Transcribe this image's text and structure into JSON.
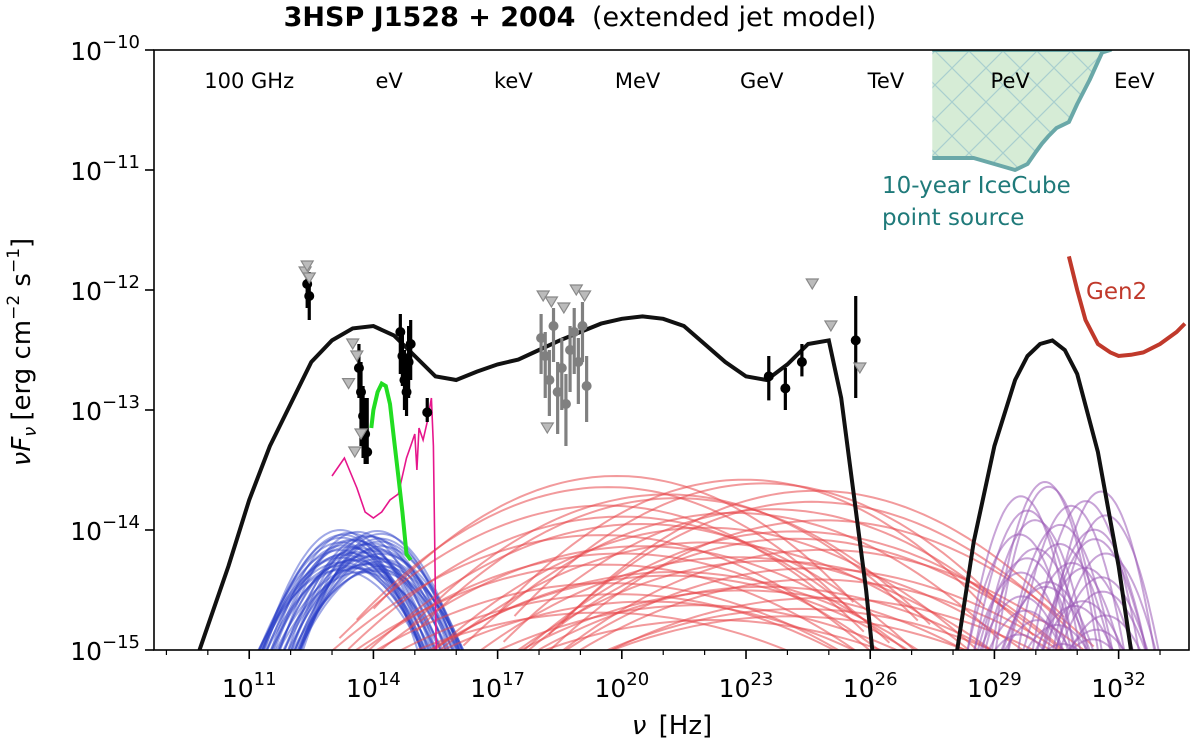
{
  "chart_data": {
    "type": "line",
    "title": {
      "source_bold": "3HSP J1528 + 2004",
      "model": "(extended jet model)"
    },
    "xlabel": {
      "symbol": "ν",
      "unit": "[Hz]"
    },
    "ylabel": {
      "main": "νF",
      "sub": "ν",
      "unit": "[erg cm",
      "exp1": "−2",
      "mid": " s",
      "exp2": "−1",
      "close": "]"
    },
    "x_scale": "log",
    "y_scale": "log",
    "xlim_log10": [
      8.7,
      33.7
    ],
    "ylim_log10": [
      -15,
      -10
    ],
    "x_ticks": [
      {
        "base": "10",
        "exp": "11",
        "log": 11
      },
      {
        "base": "10",
        "exp": "14",
        "log": 14
      },
      {
        "base": "10",
        "exp": "17",
        "log": 17
      },
      {
        "base": "10",
        "exp": "20",
        "log": 20
      },
      {
        "base": "10",
        "exp": "23",
        "log": 23
      },
      {
        "base": "10",
        "exp": "26",
        "log": 26
      },
      {
        "base": "10",
        "exp": "29",
        "log": 29
      },
      {
        "base": "10",
        "exp": "32",
        "log": 32
      }
    ],
    "y_ticks": [
      {
        "base": "10",
        "exp": "−10",
        "log": -10
      },
      {
        "base": "10",
        "exp": "−11",
        "log": -11
      },
      {
        "base": "10",
        "exp": "−12",
        "log": -12
      },
      {
        "base": "10",
        "exp": "−13",
        "log": -13
      },
      {
        "base": "10",
        "exp": "−14",
        "log": -14
      },
      {
        "base": "10",
        "exp": "−15",
        "log": -15
      }
    ],
    "energy_labels": [
      {
        "text": "100 GHz",
        "log": 11.0
      },
      {
        "text": "eV",
        "log": 14.38
      },
      {
        "text": "keV",
        "log": 17.38
      },
      {
        "text": "MeV",
        "log": 20.38
      },
      {
        "text": "GeV",
        "log": 23.38
      },
      {
        "text": "TeV",
        "log": 26.38
      },
      {
        "text": "PeV",
        "log": 29.38
      },
      {
        "text": "EeV",
        "log": 32.38
      }
    ],
    "annotations": {
      "icecube_line1": "10-year IceCube",
      "icecube_line2": "point source",
      "gen2": "Gen2"
    },
    "colors": {
      "total_model": "#111111",
      "synchrotron_components": "#2b3fc7",
      "ic_components": "#e8474a",
      "neutrino_components": "#9b59b6",
      "data_black": "#000000",
      "data_gray": "#808080",
      "uv_optical_green": "#22dd22",
      "host_magenta": "#e6168c",
      "icecube_fill": "#d6ecd6",
      "icecube_edge": "#6aa8a8",
      "gen2": "#c0392b",
      "annotation_teal": "#1f7a7a",
      "annotation_red": "#c0392b"
    },
    "series": [
      {
        "role": "total photon SED",
        "x_log": [
          9.8,
          10.5,
          11.0,
          11.5,
          12.0,
          12.5,
          13.0,
          13.5,
          14.0,
          14.5,
          15.0,
          15.5,
          16.0,
          16.5,
          17.0,
          17.5,
          18.0,
          18.5,
          19.0,
          19.5,
          20.0,
          20.5,
          21.0,
          21.5,
          22.0,
          22.5,
          23.0,
          23.5,
          24.0,
          24.5,
          25.0,
          25.3,
          25.6,
          25.9,
          26.05
        ],
        "y_log": [
          -15.0,
          -14.3,
          -13.75,
          -13.3,
          -12.95,
          -12.6,
          -12.42,
          -12.32,
          -12.3,
          -12.38,
          -12.55,
          -12.72,
          -12.75,
          -12.68,
          -12.62,
          -12.58,
          -12.5,
          -12.42,
          -12.35,
          -12.28,
          -12.24,
          -12.22,
          -12.24,
          -12.3,
          -12.45,
          -12.6,
          -12.72,
          -12.75,
          -12.62,
          -12.45,
          -12.42,
          -12.9,
          -13.7,
          -14.5,
          -15.0
        ]
      },
      {
        "role": "total neutrino spectrum",
        "x_log": [
          28.1,
          28.5,
          29.0,
          29.5,
          29.8,
          30.1,
          30.4,
          30.7,
          31.0,
          31.5,
          32.0,
          32.3
        ],
        "y_log": [
          -15.0,
          -14.1,
          -13.3,
          -12.75,
          -12.55,
          -12.45,
          -12.42,
          -12.5,
          -12.7,
          -13.35,
          -14.3,
          -15.0
        ]
      },
      {
        "role": "uv-optical data",
        "x_log": [
          13.95,
          14.0,
          14.1,
          14.2,
          14.3,
          14.4,
          14.5,
          14.6,
          14.7,
          14.8,
          14.9
        ],
        "y_log": [
          -13.15,
          -13.0,
          -12.85,
          -12.78,
          -12.8,
          -12.95,
          -13.25,
          -13.55,
          -13.85,
          -14.2,
          -14.25
        ]
      },
      {
        "role": "host galaxy template",
        "x_log": [
          13.0,
          13.3,
          13.6,
          13.8,
          14.0,
          14.2,
          14.4,
          14.6,
          14.7,
          14.8,
          14.9,
          15.0,
          15.05,
          15.1,
          15.2,
          15.3,
          15.4,
          15.45,
          15.5,
          15.52
        ],
        "y_log": [
          -13.55,
          -13.4,
          -13.65,
          -13.85,
          -13.9,
          -13.85,
          -13.75,
          -13.7,
          -13.55,
          -13.4,
          -13.3,
          -13.2,
          -13.5,
          -13.15,
          -13.25,
          -13.1,
          -12.9,
          -13.3,
          -14.6,
          -15.0
        ]
      },
      {
        "role": "Gen2 sensitivity",
        "x_log": [
          30.8,
          31.0,
          31.2,
          31.5,
          31.8,
          32.0,
          32.3,
          32.6,
          33.0,
          33.4,
          33.6
        ],
        "y_log": [
          -11.72,
          -12.0,
          -12.25,
          -12.45,
          -12.52,
          -12.55,
          -12.54,
          -12.52,
          -12.45,
          -12.35,
          -12.28
        ]
      },
      {
        "role": "IceCube sensitivity band",
        "x_log": [
          27.5,
          28.5,
          29.0,
          29.5,
          29.8,
          30.0,
          30.15,
          30.3,
          30.5,
          30.8,
          31.0,
          31.3,
          31.6,
          31.8,
          31.5,
          31.1,
          30.8,
          30.5,
          30.2,
          30.0,
          29.8,
          29.5,
          29.0,
          28.6,
          28.3,
          28.0,
          27.7,
          27.5
        ],
        "y_log": [
          -10.9,
          -10.9,
          -10.95,
          -11.0,
          -10.95,
          -10.85,
          -10.78,
          -10.72,
          -10.65,
          -10.6,
          -10.45,
          -10.25,
          -10.02,
          -10.0,
          -10.0,
          -10.0,
          -10.0,
          -10.0,
          -10.0,
          -10.0,
          -10.0,
          -10.0,
          -10.0,
          -10.0,
          -10.0,
          -10.0,
          -10.0,
          -10.0
        ]
      }
    ],
    "data_points_black": [
      {
        "x": 12.4,
        "y": -11.95,
        "lo": -12.15,
        "hi": -11.8
      },
      {
        "x": 12.45,
        "y": -12.05,
        "lo": -12.25,
        "hi": -11.85
      },
      {
        "x": 13.65,
        "y": -12.65,
        "lo": -12.9,
        "hi": -12.45
      },
      {
        "x": 13.7,
        "y": -12.85,
        "lo": -13.3,
        "hi": -12.6
      },
      {
        "x": 13.75,
        "y": -13.05,
        "lo": -13.4,
        "hi": -12.8
      },
      {
        "x": 13.8,
        "y": -13.2,
        "lo": -13.45,
        "hi": -12.9
      },
      {
        "x": 13.85,
        "y": -13.35,
        "lo": -13.45,
        "hi": -12.9
      },
      {
        "x": 14.65,
        "y": -12.35,
        "lo": -12.7,
        "hi": -12.2
      },
      {
        "x": 14.7,
        "y": -12.55,
        "lo": -12.8,
        "hi": -12.35
      },
      {
        "x": 14.75,
        "y": -12.75,
        "lo": -13.0,
        "hi": -12.5
      },
      {
        "x": 14.8,
        "y": -12.85,
        "lo": -13.05,
        "hi": -12.6
      },
      {
        "x": 14.85,
        "y": -12.6,
        "lo": -12.9,
        "hi": -12.3
      },
      {
        "x": 14.9,
        "y": -12.45,
        "lo": -12.75,
        "hi": -12.25
      },
      {
        "x": 15.3,
        "y": -13.02,
        "lo": -13.1,
        "hi": -12.9
      },
      {
        "x": 23.55,
        "y": -12.72,
        "lo": -12.92,
        "hi": -12.55
      },
      {
        "x": 23.95,
        "y": -12.82,
        "lo": -13.0,
        "hi": -12.65
      },
      {
        "x": 24.35,
        "y": -12.6,
        "lo": -12.72,
        "hi": -12.45
      },
      {
        "x": 25.65,
        "y": -12.42,
        "lo": -12.9,
        "hi": -12.05
      }
    ],
    "data_points_gray": [
      {
        "x": 18.05,
        "y": -12.4,
        "lo": -12.7,
        "hi": -12.2
      },
      {
        "x": 18.15,
        "y": -12.55,
        "lo": -12.9,
        "hi": -12.35
      },
      {
        "x": 18.25,
        "y": -12.75,
        "lo": -13.05,
        "hi": -12.5
      },
      {
        "x": 18.35,
        "y": -12.3,
        "lo": -12.6,
        "hi": -12.15
      },
      {
        "x": 18.45,
        "y": -12.85,
        "lo": -13.2,
        "hi": -12.6
      },
      {
        "x": 18.55,
        "y": -12.65,
        "lo": -13.0,
        "hi": -12.4
      },
      {
        "x": 18.65,
        "y": -12.95,
        "lo": -13.3,
        "hi": -12.7
      },
      {
        "x": 18.75,
        "y": -12.5,
        "lo": -12.85,
        "hi": -12.3
      },
      {
        "x": 18.85,
        "y": -12.35,
        "lo": -12.7,
        "hi": -12.15
      },
      {
        "x": 18.95,
        "y": -12.6,
        "lo": -12.95,
        "hi": -12.4
      },
      {
        "x": 19.05,
        "y": -12.3,
        "lo": -12.6,
        "hi": -12.1
      },
      {
        "x": 19.15,
        "y": -12.8,
        "lo": -13.1,
        "hi": -12.55
      }
    ],
    "upper_limits_gray": [
      {
        "x": 12.35,
        "y": -11.85
      },
      {
        "x": 12.4,
        "y": -11.8
      },
      {
        "x": 12.45,
        "y": -11.9
      },
      {
        "x": 13.5,
        "y": -12.45
      },
      {
        "x": 13.6,
        "y": -12.55
      },
      {
        "x": 13.4,
        "y": -12.78
      },
      {
        "x": 13.55,
        "y": -13.35
      },
      {
        "x": 13.7,
        "y": -13.2
      },
      {
        "x": 18.1,
        "y": -12.05
      },
      {
        "x": 18.3,
        "y": -12.1
      },
      {
        "x": 18.6,
        "y": -12.15
      },
      {
        "x": 18.9,
        "y": -12.0
      },
      {
        "x": 19.1,
        "y": -12.05
      },
      {
        "x": 18.2,
        "y": -13.15
      },
      {
        "x": 24.6,
        "y": -11.95
      },
      {
        "x": 25.05,
        "y": -12.3
      },
      {
        "x": 25.75,
        "y": -12.65
      }
    ],
    "component_bundles": [
      {
        "role": "synchrotron",
        "count": 45,
        "peak_x": [
          13.2,
          14.2
        ],
        "peak_y": [
          -14.35,
          -14.0
        ],
        "width": [
          0.95,
          1.25
        ]
      },
      {
        "role": "inverse Compton",
        "count": 40,
        "peak_x": [
          19.5,
          24.9
        ],
        "peak_y": [
          -14.75,
          -13.55
        ],
        "width": [
          2.2,
          3.2
        ]
      },
      {
        "role": "neutrino",
        "count": 35,
        "peak_x": [
          29.6,
          31.7
        ],
        "peak_y": [
          -14.95,
          -13.6
        ],
        "width": [
          0.55,
          0.85
        ]
      }
    ]
  }
}
